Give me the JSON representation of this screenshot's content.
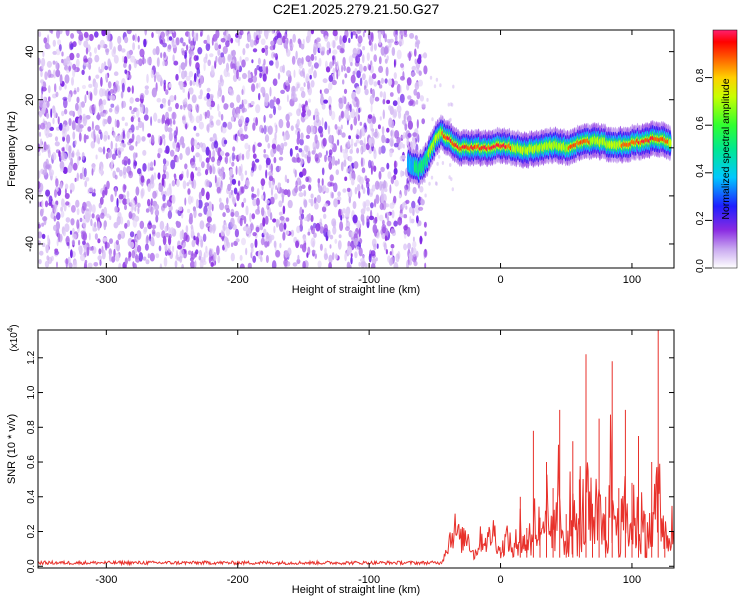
{
  "title": "C2E1.2025.279.21.50.G27",
  "chart_data": [
    {
      "type": "heatmap",
      "title": "C2E1.2025.279.21.50.G27",
      "xlabel": "Height of straight line (km)",
      "ylabel": "Frequency (Hz)",
      "xlim": [
        -352,
        132
      ],
      "ylim": [
        -50,
        49
      ],
      "x_ticks": [
        -300,
        -200,
        -100,
        0,
        100
      ],
      "y_ticks": [
        -40,
        -20,
        0,
        20,
        40
      ],
      "colorbar": {
        "label": "Normalized spectral amplitude",
        "range": [
          0,
          1
        ],
        "ticks": [
          0.0,
          0.2,
          0.4,
          0.6,
          0.8
        ],
        "tick_labels": [
          "0.0",
          "0.2",
          "0.4",
          "0.6",
          "0.8"
        ]
      },
      "noise_region_x": [
        -352,
        -60
      ],
      "ridge": {
        "x": [
          -70,
          -62,
          -58,
          -54,
          -50,
          -46,
          -42,
          -38,
          -34,
          -30,
          -20,
          -10,
          0,
          10,
          20,
          30,
          40,
          50,
          60,
          70,
          80,
          90,
          100,
          110,
          120,
          130
        ],
        "freq": [
          -6,
          -9,
          -7,
          -2,
          3,
          6,
          5,
          3,
          1,
          0,
          0,
          0,
          1,
          0,
          -1,
          0,
          1,
          0,
          2,
          3,
          2,
          1,
          2,
          3,
          4,
          2
        ],
        "peak_amplitude": [
          0.45,
          0.55,
          0.6,
          0.7,
          0.8,
          0.85,
          0.9,
          0.95,
          0.95,
          0.98,
          1.0,
          1.0,
          0.98,
          0.85,
          0.8,
          0.85,
          0.8,
          0.85,
          0.9,
          0.85,
          0.8,
          0.85,
          0.9,
          0.95,
          0.9,
          0.85
        ]
      }
    },
    {
      "type": "line",
      "xlabel": "Height of straight line (km)",
      "ylabel": "SNR (10 * v/v)",
      "y_multiplier": "(x10",
      "y_multiplier_exp": "4",
      "y_multiplier_close": ")",
      "xlim": [
        -352,
        132
      ],
      "ylim": [
        -0.01,
        1.36
      ],
      "x_ticks": [
        -300,
        -200,
        -100,
        0,
        100
      ],
      "y_ticks": [
        0.0,
        0.2,
        0.4,
        0.6,
        0.8,
        1.0,
        1.2
      ],
      "y_tick_labels": [
        "0.0",
        "0.2",
        "0.4",
        "0.6",
        "0.8",
        "1.0",
        "1.2"
      ],
      "color": "#e8312b",
      "series": [
        {
          "name": "SNR",
          "x": [
            -352,
            -300,
            -200,
            -100,
            -45,
            -40,
            -35,
            -30,
            -25,
            -20,
            -15,
            -10,
            -5,
            0,
            5,
            10,
            15,
            20,
            25,
            30,
            35,
            40,
            45,
            50,
            55,
            60,
            65,
            70,
            75,
            80,
            85,
            90,
            95,
            100,
            105,
            110,
            115,
            120,
            125,
            132
          ],
          "y": [
            0.02,
            0.02,
            0.02,
            0.02,
            0.03,
            0.18,
            0.3,
            0.2,
            0.25,
            0.08,
            0.22,
            0.2,
            0.28,
            0.1,
            0.24,
            0.1,
            0.4,
            0.22,
            0.78,
            0.28,
            0.6,
            0.45,
            0.9,
            0.3,
            0.72,
            0.5,
            1.22,
            0.36,
            0.85,
            0.4,
            1.18,
            0.45,
            0.9,
            0.48,
            0.75,
            0.3,
            0.6,
            1.36,
            0.2,
            0.7
          ]
        }
      ]
    }
  ]
}
